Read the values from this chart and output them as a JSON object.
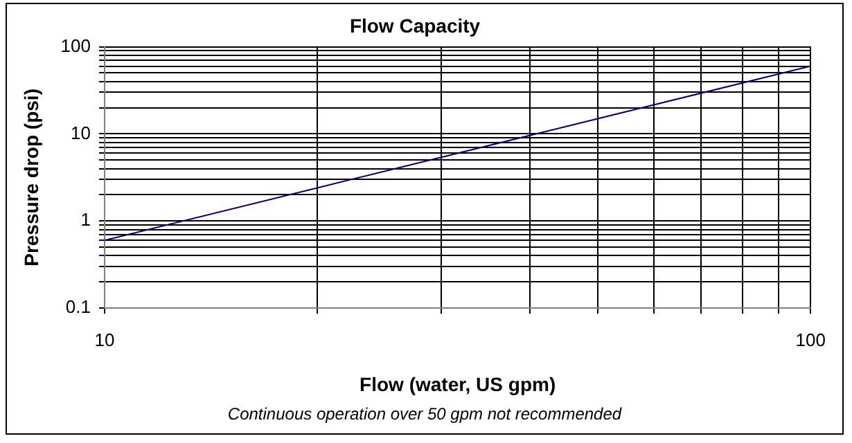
{
  "chart_data": {
    "type": "line",
    "title": "Flow Capacity",
    "xlabel": "Flow (water, US gpm)",
    "ylabel": "Pressure drop (psi)",
    "annotations": [
      "Continuous operation over 50 gpm not recommended"
    ],
    "x": [
      10,
      20,
      40,
      100
    ],
    "series": [
      {
        "color": "#000080",
        "values": [
          0.6,
          2.4,
          9.6,
          60
        ]
      }
    ],
    "log": "xy",
    "grid": true,
    "legend": false,
    "marker": "none",
    "line_style": "solid",
    "xlim": [
      10,
      100
    ],
    "xticks": [
      10,
      {
        "value": 20,
        "label": null
      },
      {
        "value": 30,
        "label": null
      },
      {
        "value": 40,
        "label": null
      },
      {
        "value": 50,
        "label": null
      },
      {
        "value": 60,
        "label": null
      },
      {
        "value": 70,
        "label": null
      },
      {
        "value": 80,
        "label": null
      },
      {
        "value": 90,
        "label": null
      },
      100
    ],
    "ylim": [
      0.1,
      100
    ],
    "yticks": [
      0.1,
      {
        "value": 0.2,
        "label": null
      },
      {
        "value": 0.3,
        "label": null
      },
      {
        "value": 0.4,
        "label": null
      },
      {
        "value": 0.5,
        "label": null
      },
      {
        "value": 0.6,
        "label": null
      },
      {
        "value": 0.7,
        "label": null
      },
      {
        "value": 0.8,
        "label": null
      },
      {
        "value": 0.9,
        "label": null
      },
      1,
      {
        "value": 2,
        "label": null
      },
      {
        "value": 3,
        "label": null
      },
      {
        "value": 4,
        "label": null
      },
      {
        "value": 5,
        "label": null
      },
      {
        "value": 6,
        "label": null
      },
      {
        "value": 7,
        "label": null
      },
      {
        "value": 8,
        "label": null
      },
      {
        "value": 9,
        "label": null
      },
      10,
      {
        "value": 20,
        "label": null
      },
      {
        "value": 30,
        "label": null
      },
      {
        "value": 40,
        "label": null
      },
      {
        "value": 50,
        "label": null
      },
      {
        "value": 60,
        "label": null
      },
      {
        "value": 70,
        "label": null
      },
      {
        "value": 80,
        "label": null
      },
      {
        "value": 90,
        "label": null
      },
      100
    ]
  }
}
